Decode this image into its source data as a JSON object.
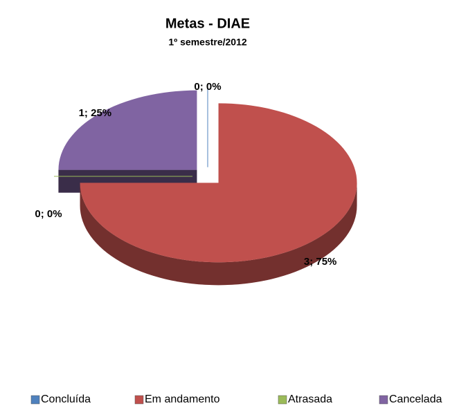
{
  "chart_data": {
    "type": "pie",
    "three_d": true,
    "exploded": true,
    "title": "Metas - DIAE",
    "subtitle": "1º semestre/2012",
    "categories": [
      "Concluída",
      "Em andamento",
      "Atrasada",
      "Cancelada"
    ],
    "values": [
      0,
      3,
      0,
      1
    ],
    "value_labels": [
      "0; 0%",
      "3; 75%",
      "0; 0%",
      "1; 25%"
    ],
    "colors": [
      "#4f81bd",
      "#c0504d",
      "#9bbb59",
      "#8064a2"
    ],
    "legend": "bottom"
  }
}
